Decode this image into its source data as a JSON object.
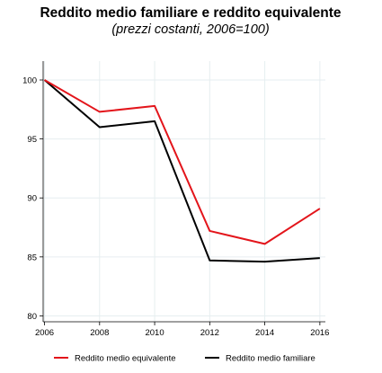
{
  "chart_data": {
    "type": "line",
    "title": "Reddito medio familiare e reddito equivalente",
    "subtitle_prefix": "(",
    "subtitle_italic": "prezzi costanti, 2006=100",
    "subtitle_suffix": ")",
    "xlabel": "",
    "ylabel": "",
    "x": [
      2006,
      2008,
      2010,
      2012,
      2014,
      2016
    ],
    "x_tick_labels": [
      "2006",
      "2008",
      "2010",
      "2012",
      "2014",
      "2016"
    ],
    "ylim": [
      79.5,
      101.6
    ],
    "xlim": [
      2005.95,
      2016.2
    ],
    "y_ticks": [
      80,
      85,
      90,
      95,
      100
    ],
    "y_tick_labels": [
      "80",
      "85",
      "90",
      "95",
      "100"
    ],
    "grid": true,
    "legend_position": "bottom",
    "series": [
      {
        "name": "Reddito medio equivalente",
        "color": "#e3151b",
        "values": [
          100,
          97.3,
          97.8,
          87.2,
          86.1,
          89.1
        ]
      },
      {
        "name": "Reddito medio familiare",
        "color": "#000000",
        "values": [
          100,
          96.0,
          96.5,
          84.7,
          84.6,
          84.9
        ]
      }
    ]
  }
}
